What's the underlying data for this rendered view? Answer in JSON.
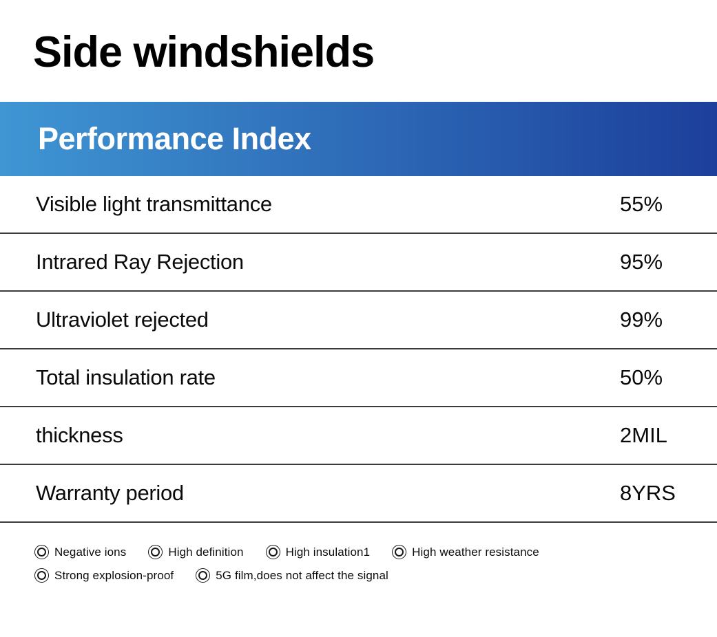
{
  "page": {
    "title": "Side windshields"
  },
  "banner": {
    "title": "Performance Index",
    "gradient_start": "#3f96d3",
    "gradient_end": "#1c3f9b",
    "text_color": "#ffffff"
  },
  "table": {
    "rows": [
      {
        "label": "Visible light transmittance",
        "value": "55%"
      },
      {
        "label": "Intrared Ray Rejection",
        "value": "95%"
      },
      {
        "label": "Ultraviolet rejected",
        "value": "99%"
      },
      {
        "label": "Total insulation rate",
        "value": "50%"
      },
      {
        "label": "thickness",
        "value": "2MIL"
      },
      {
        "label": "Warranty period",
        "value": "8YRS"
      }
    ]
  },
  "features": {
    "icon": "double-circle-icon",
    "items": [
      "Negative ions",
      "High definition",
      "High insulation1",
      "High weather resistance",
      "Strong explosion-proof",
      "5G film,does not affect the signal"
    ]
  }
}
